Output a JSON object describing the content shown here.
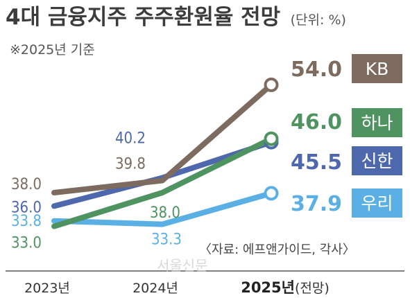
{
  "header": {
    "title": "4대 금융지주 주주환원율 전망",
    "unit": "(단위: %)",
    "subtitle": "※2025년 기준"
  },
  "footer": {
    "source": "〈자료: 에프앤가이드, 각사〉",
    "watermark": "서울신문"
  },
  "chart_data": {
    "type": "line",
    "categories": [
      "2023년",
      "2024년",
      "2025년"
    ],
    "category_suffixes": [
      "",
      "",
      "(전망)"
    ],
    "highlight_category": 2,
    "ylim": [
      31,
      56
    ],
    "grid": false,
    "legend": "right",
    "series": [
      {
        "name": "KB",
        "values": [
          38.0,
          39.8,
          54.0
        ],
        "color": "#7d6b60",
        "end_label": "54.0"
      },
      {
        "name": "하나",
        "values": [
          33.0,
          38.0,
          46.0
        ],
        "color": "#4f9460",
        "end_label": "46.0"
      },
      {
        "name": "신한",
        "values": [
          36.0,
          40.2,
          45.5
        ],
        "color": "#4d68ac",
        "end_label": "45.5"
      },
      {
        "name": "우리",
        "values": [
          33.8,
          33.3,
          37.9
        ],
        "color": "#5ab0e4",
        "end_label": "37.9"
      }
    ],
    "point_labels": [
      {
        "series": "KB",
        "index": 0,
        "text": "38.0"
      },
      {
        "series": "신한",
        "index": 0,
        "text": "36.0"
      },
      {
        "series": "우리",
        "index": 0,
        "text": "33.8"
      },
      {
        "series": "하나",
        "index": 0,
        "text": "33.0"
      },
      {
        "series": "신한",
        "index": 1,
        "text": "40.2"
      },
      {
        "series": "KB",
        "index": 1,
        "text": "39.8"
      },
      {
        "series": "하나",
        "index": 1,
        "text": "38.0"
      },
      {
        "series": "우리",
        "index": 1,
        "text": "33.3"
      }
    ]
  }
}
